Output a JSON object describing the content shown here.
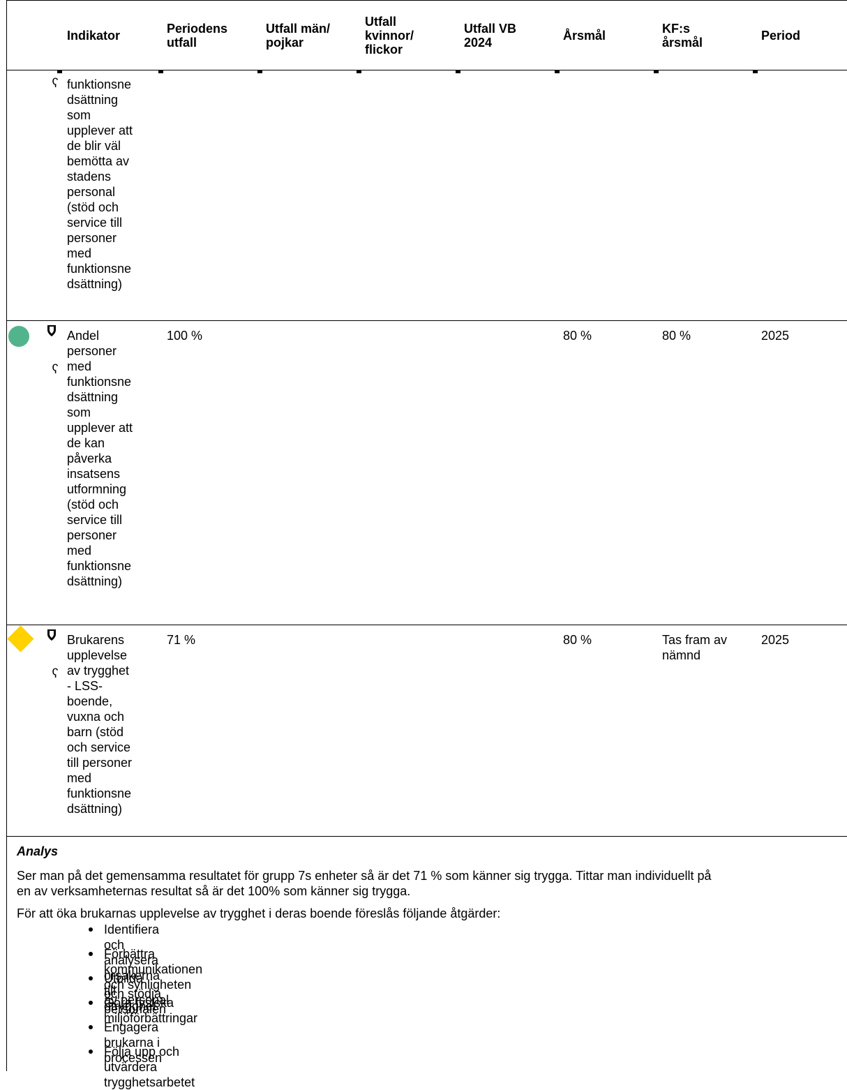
{
  "header": {
    "columns": [
      {
        "label": "Indikator"
      },
      {
        "label": "Periodens utfall"
      },
      {
        "label": "Utfall män/ pojkar"
      },
      {
        "label": "Utfall kvinnor/ flickor"
      },
      {
        "label": "Utfall VB 2024"
      },
      {
        "label": "Årsmål"
      },
      {
        "label": "KF:s årsmål"
      },
      {
        "label": "Period"
      }
    ]
  },
  "rows": [
    {
      "status": "none",
      "indicator_lines": [
        "funktionsne",
        "dsättning",
        "som",
        "upplever att",
        "de blir väl",
        "bemötta av",
        "stadens",
        "personal",
        "(stöd och",
        "service till",
        "personer",
        "med",
        "funktionsne",
        "dsättning)"
      ],
      "utfall": "",
      "man": "",
      "kvinnor": "",
      "vb": "",
      "arsmal": "",
      "kf": "",
      "period": ""
    },
    {
      "status": "green-circle",
      "status_color": "#52b48c",
      "indicator_lines": [
        "Andel",
        "personer",
        "med",
        "funktionsne",
        "dsättning",
        "som",
        "upplever att",
        "de kan",
        "påverka",
        "insatsens",
        "utformning",
        "(stöd och",
        "service till",
        "personer",
        "med",
        "funktionsne",
        "dsättning)"
      ],
      "utfall": "100 %",
      "man": "",
      "kvinnor": "",
      "vb": "",
      "arsmal": "80 %",
      "kf": "80 %",
      "period": "2025"
    },
    {
      "status": "yellow-diamond",
      "status_color": "#ffd200",
      "indicator_lines": [
        "Brukarens",
        "upplevelse",
        "av trygghet",
        "- LSS-",
        "boende,",
        "vuxna och",
        "barn (stöd",
        "och service",
        "till personer",
        "med",
        "funktionsne",
        "dsättning)"
      ],
      "utfall": "71 %",
      "man": "",
      "kvinnor": "",
      "vb": "",
      "arsmal": "80 %",
      "kf_lines": [
        "Tas fram av",
        "nämnd"
      ],
      "period": "2025"
    }
  ],
  "analysis": {
    "title": "Analys",
    "p1_lines": [
      "Ser man på det gemensamma resultatet för grupp 7s enheter så är det 71 % som känner sig trygga. Tittar man individuellt på",
      "en av verksamheternas resultat så är det 100% som känner sig trygga."
    ],
    "p2": "För att öka brukarnas upplevelse av trygghet i deras boende föreslås följande åtgärder:",
    "bullets": [
      "Identifiera och analysera orsakerna till otrygghet",
      "Förbättra kommunikationen och synligheten av personal",
      "Utbilda och stödja personalen",
      "Göra fysiska miljöförbättringar",
      "Engagera brukarna i processen",
      "Följa upp och utvärdera trygghetsarbetet"
    ]
  },
  "icons": {
    "shield": "shield-icon",
    "trend": "trend-icon",
    "trend_glyph": "ʕ"
  }
}
